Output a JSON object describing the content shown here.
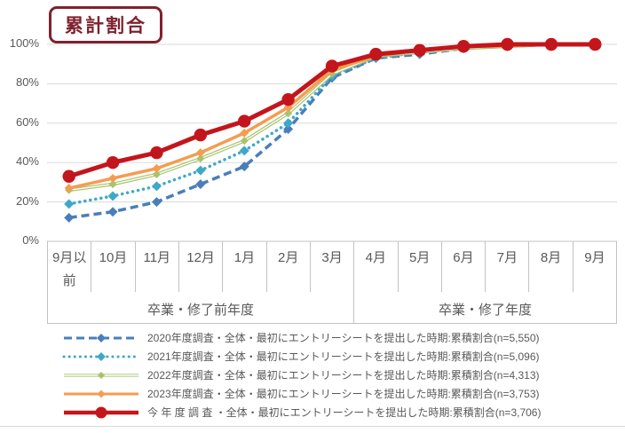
{
  "header": {
    "title": "累計割合"
  },
  "colors": {
    "title": "#7E222E",
    "text": "#595959",
    "grid": "#DADADA",
    "axis": "#C2C2C2",
    "background": "#FFFFFF"
  },
  "chart_data": {
    "type": "line",
    "title": "累計割合",
    "xlabel": "",
    "ylabel": "",
    "ylim": [
      0,
      100
    ],
    "yticks": [
      "0%",
      "20%",
      "40%",
      "60%",
      "80%",
      "100%"
    ],
    "grid": true,
    "legend_position": "bottom",
    "categories": [
      "9月以前",
      "10月",
      "11月",
      "12月",
      "1月",
      "2月",
      "3月",
      "4月",
      "5月",
      "6月",
      "7月",
      "8月",
      "9月"
    ],
    "category_groups": [
      {
        "label": "卒業・修了前年度",
        "cols": 7
      },
      {
        "label": "卒業・修了年度",
        "cols": 6
      }
    ],
    "series": [
      {
        "name": "2020年度調査・全体・最初にエントリーシートを提出した時期:累積割合(n=5,550)",
        "color": "#4A7EBB",
        "line_style": "dashed",
        "marker": "diamond",
        "marker_size": 5.5,
        "values": [
          12,
          15,
          20,
          29,
          38,
          57,
          83,
          93,
          95,
          98,
          99,
          100,
          100
        ]
      },
      {
        "name": "2021年度調査・全体・最初にエントリーシートを提出した時期:累積割合(n=5,096)",
        "color": "#3FA8C9",
        "line_style": "dotted",
        "marker": "diamond",
        "marker_size": 5.5,
        "values": [
          19,
          23,
          28,
          36,
          46,
          60,
          84,
          93,
          96,
          98,
          99,
          100,
          100
        ]
      },
      {
        "name": "2022年度調査・全体・最初にエントリーシートを提出した時期:累積割合(n=4,313)",
        "color": "#A8C36B",
        "line_style": "double",
        "marker": "diamond",
        "marker_size": 4.5,
        "values": [
          26,
          29,
          34,
          42,
          51,
          65,
          85,
          94,
          96,
          98,
          99,
          100,
          100
        ]
      },
      {
        "name": "2023年度調査・全体・最初にエントリーシートを提出した時期:累積割合(n=3,753)",
        "color": "#F59C50",
        "line_style": "solid",
        "marker": "diamond",
        "marker_size": 5,
        "values": [
          27,
          32,
          37,
          45,
          55,
          68,
          87,
          94,
          97,
          99,
          99,
          100,
          100
        ]
      },
      {
        "name": "今 年 度 調 査 ・全体・最初にエントリーシートを提出した時期:累積割合(n=3,706)",
        "color": "#C3161C",
        "line_style": "thick",
        "marker": "circle",
        "marker_size": 7.2,
        "values": [
          33,
          40,
          45,
          54,
          61,
          72,
          89,
          95,
          97,
          99,
          100,
          100,
          100
        ]
      }
    ]
  }
}
